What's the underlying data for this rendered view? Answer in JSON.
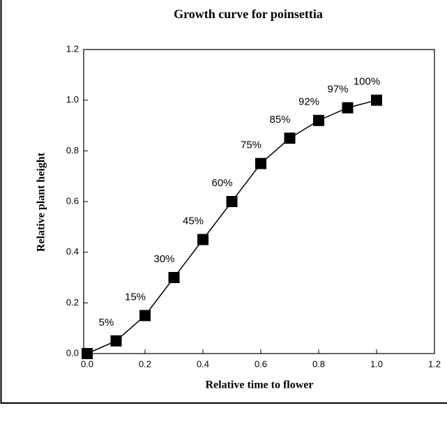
{
  "chart_data": {
    "type": "line",
    "title": "Growth curve for poinsettia",
    "x_label": "Relative time to flower",
    "y_label": "Relative plant height",
    "x": [
      0,
      0.1,
      0.2,
      0.3,
      0.4,
      0.5,
      0.6,
      0.7,
      0.8,
      0.9,
      1.0
    ],
    "series": [
      {
        "color": "#000000",
        "values": [
          0,
          0.05,
          0.15,
          0.3,
          0.45,
          0.6,
          0.75,
          0.85,
          0.92,
          0.97,
          1.0
        ],
        "value_labels": [
          null,
          "5%",
          "15%",
          "30%",
          "45%",
          "60%",
          "75%",
          "85%",
          "92%",
          "97%",
          "100%"
        ]
      }
    ],
    "xlim": [
      0,
      1.2
    ],
    "xticks": [
      {
        "value": 0,
        "label": "0.0"
      },
      0.2,
      0.4,
      0.6,
      0.8,
      {
        "value": 1,
        "label": "1.0"
      },
      1.2
    ],
    "ylim": [
      0,
      1.2
    ],
    "yticks": [
      {
        "value": 0,
        "label": "0.0"
      },
      0.2,
      0.4,
      0.6,
      0.8,
      {
        "value": 1,
        "label": "1.0"
      },
      1.2
    ],
    "grid": false
  }
}
